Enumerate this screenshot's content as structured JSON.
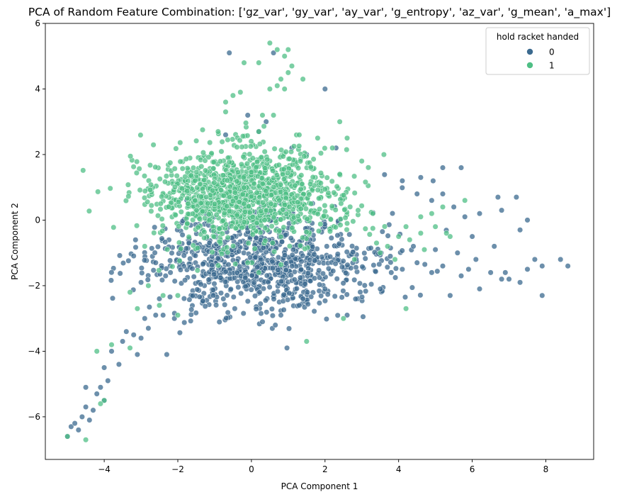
{
  "chart_data": {
    "type": "scatter",
    "title": "PCA of Random Feature Combination: ['gz_var', 'gy_var', 'ay_var', 'g_entropy', 'az_var', 'g_mean', 'a_max']",
    "xlabel": "PCA Component 1",
    "ylabel": "PCA Component 2",
    "xlim": [
      -5.6,
      9.3
    ],
    "ylim": [
      -7.3,
      6.0
    ],
    "xticks": [
      -4,
      -2,
      0,
      2,
      4,
      6,
      8
    ],
    "yticks": [
      -6,
      -4,
      -2,
      0,
      2,
      4,
      6
    ],
    "grid": false,
    "legend": {
      "title": "hold racket handed",
      "placement": "top-right",
      "entries": [
        {
          "label": "0",
          "color": "#3b6a8f"
        },
        {
          "label": "1",
          "color": "#4fbf85"
        }
      ]
    },
    "marker_alpha": 0.75,
    "series": [
      {
        "name": "0",
        "color": "#3b6a8f",
        "cluster": {
          "center": [
            0.3,
            -1.3
          ],
          "spread": [
            1.6,
            0.75
          ],
          "n": 900,
          "seed": 11
        },
        "tail_points": [
          [
            -5.0,
            -6.6
          ],
          [
            -4.9,
            -6.3
          ],
          [
            -4.8,
            -6.2
          ],
          [
            -4.7,
            -6.4
          ],
          [
            -4.6,
            -6.0
          ],
          [
            -4.5,
            -5.7
          ],
          [
            -4.4,
            -6.1
          ],
          [
            -4.5,
            -5.1
          ],
          [
            -4.3,
            -5.8
          ],
          [
            -4.2,
            -5.3
          ],
          [
            -4.1,
            -5.1
          ],
          [
            -4.0,
            -5.5
          ],
          [
            -4.0,
            -4.5
          ],
          [
            -3.9,
            -4.9
          ],
          [
            -3.8,
            -4.0
          ],
          [
            -3.6,
            -4.4
          ],
          [
            -3.5,
            -3.7
          ],
          [
            -3.4,
            -3.4
          ],
          [
            -3.2,
            -3.5
          ],
          [
            -3.0,
            -3.6
          ],
          [
            -3.1,
            -4.1
          ],
          [
            -2.9,
            -3.0
          ],
          [
            -2.8,
            -3.3
          ],
          [
            -2.6,
            -2.9
          ],
          [
            -2.4,
            -2.9
          ],
          [
            -2.3,
            -4.1
          ],
          [
            -2.5,
            -2.4
          ],
          [
            -3.0,
            -1.9
          ],
          [
            -2.2,
            -1.6
          ],
          [
            -2.6,
            -1.3
          ],
          [
            0.8,
            -2.9
          ],
          [
            1.3,
            -2.6
          ],
          [
            2.6,
            -2.9
          ],
          [
            0.3,
            -3.1
          ],
          [
            1.4,
            -2.4
          ],
          [
            2.0,
            -2.1
          ],
          [
            3.8,
            -1.6
          ],
          [
            4.1,
            -1.5
          ],
          [
            4.5,
            -1.3
          ],
          [
            4.9,
            -1.6
          ],
          [
            5.2,
            -1.4
          ],
          [
            5.4,
            -2.3
          ],
          [
            5.7,
            -1.7
          ],
          [
            5.9,
            -1.5
          ],
          [
            6.2,
            -2.1
          ],
          [
            6.5,
            -1.6
          ],
          [
            6.8,
            -1.8
          ],
          [
            6.9,
            -1.6
          ],
          [
            7.0,
            -1.8
          ],
          [
            7.3,
            -1.9
          ],
          [
            7.5,
            -1.5
          ],
          [
            7.7,
            -1.2
          ],
          [
            7.9,
            -2.3
          ],
          [
            7.9,
            -1.4
          ],
          [
            8.4,
            -1.2
          ],
          [
            8.6,
            -1.4
          ],
          [
            5.2,
            1.6
          ],
          [
            5.7,
            1.6
          ],
          [
            6.7,
            0.7
          ],
          [
            7.2,
            0.7
          ],
          [
            6.2,
            0.2
          ],
          [
            7.3,
            -0.3
          ],
          [
            7.5,
            0.0
          ],
          [
            6.8,
            0.3
          ],
          [
            5.8,
            0.1
          ],
          [
            6.0,
            -0.5
          ],
          [
            4.5,
            0.8
          ],
          [
            4.1,
            1.2
          ],
          [
            4.6,
            1.3
          ],
          [
            4.9,
            0.6
          ],
          [
            5.2,
            0.8
          ],
          [
            5.5,
            0.4
          ],
          [
            6.6,
            -0.8
          ],
          [
            5.6,
            -1.0
          ],
          [
            6.1,
            -1.2
          ],
          [
            5.0,
            -0.9
          ],
          [
            4.4,
            -0.8
          ],
          [
            0.6,
            5.1
          ],
          [
            -0.6,
            5.1
          ],
          [
            2.0,
            4.0
          ],
          [
            -0.1,
            3.2
          ],
          [
            0.4,
            3.0
          ],
          [
            0.2,
            2.7
          ],
          [
            -0.7,
            2.6
          ],
          [
            1.1,
            2.2
          ],
          [
            2.3,
            2.2
          ],
          [
            1.5,
            2.0
          ]
        ]
      },
      {
        "name": "1",
        "color": "#4fbf85",
        "cluster": {
          "center": [
            -0.2,
            0.8
          ],
          "spread": [
            1.3,
            0.7
          ],
          "n": 1200,
          "seed": 29
        },
        "tail_points": [
          [
            -5.0,
            -6.6
          ],
          [
            -4.5,
            -6.7
          ],
          [
            -4.2,
            -4.0
          ],
          [
            -4.0,
            -5.5
          ],
          [
            -4.1,
            -5.6
          ],
          [
            -3.8,
            -3.8
          ],
          [
            -3.3,
            -2.2
          ],
          [
            -3.1,
            -2.7
          ],
          [
            -2.8,
            -2.0
          ],
          [
            -2.4,
            -2.3
          ],
          [
            -2.0,
            -2.9
          ],
          [
            -2.0,
            -2.3
          ],
          [
            -3.3,
            -3.9
          ],
          [
            -2.5,
            -2.6
          ],
          [
            -2.9,
            -0.8
          ],
          [
            0.7,
            5.2
          ],
          [
            0.9,
            5.0
          ],
          [
            1.0,
            5.2
          ],
          [
            0.5,
            5.4
          ],
          [
            0.2,
            4.8
          ],
          [
            -0.2,
            4.8
          ],
          [
            1.1,
            4.7
          ],
          [
            0.8,
            4.3
          ],
          [
            0.9,
            4.0
          ],
          [
            1.0,
            4.5
          ],
          [
            0.7,
            4.1
          ],
          [
            1.4,
            4.3
          ],
          [
            0.5,
            4.0
          ],
          [
            -0.5,
            3.8
          ],
          [
            -0.3,
            3.9
          ],
          [
            -0.7,
            3.3
          ],
          [
            -0.7,
            3.6
          ],
          [
            0.3,
            3.2
          ],
          [
            0.6,
            3.2
          ],
          [
            2.4,
            3.0
          ],
          [
            0.2,
            2.7
          ],
          [
            1.3,
            2.6
          ],
          [
            1.8,
            2.5
          ],
          [
            2.2,
            2.2
          ],
          [
            2.6,
            2.5
          ],
          [
            3.0,
            1.8
          ],
          [
            3.6,
            2.0
          ],
          [
            2.4,
            1.4
          ],
          [
            3.4,
            -0.7
          ],
          [
            3.7,
            -0.8
          ],
          [
            4.0,
            -0.5
          ],
          [
            4.3,
            -0.6
          ],
          [
            4.6,
            -0.4
          ],
          [
            5.0,
            -0.2
          ],
          [
            5.2,
            0.4
          ],
          [
            5.4,
            -0.5
          ],
          [
            4.7,
            -0.9
          ],
          [
            3.9,
            -1.2
          ],
          [
            3.5,
            -1.0
          ],
          [
            2.8,
            -1.2
          ],
          [
            4.2,
            -2.7
          ],
          [
            2.5,
            -3.0
          ],
          [
            1.5,
            -3.7
          ],
          [
            0.2,
            -1.6
          ],
          [
            -0.1,
            -1.3
          ],
          [
            4.9,
            0.2
          ],
          [
            4.6,
            0.1
          ],
          [
            5.3,
            -0.4
          ],
          [
            5.8,
            0.6
          ],
          [
            4.2,
            -0.2
          ],
          [
            3.3,
            0.2
          ],
          [
            2.9,
            0.3
          ],
          [
            2.6,
            -0.1
          ]
        ]
      }
    ]
  }
}
